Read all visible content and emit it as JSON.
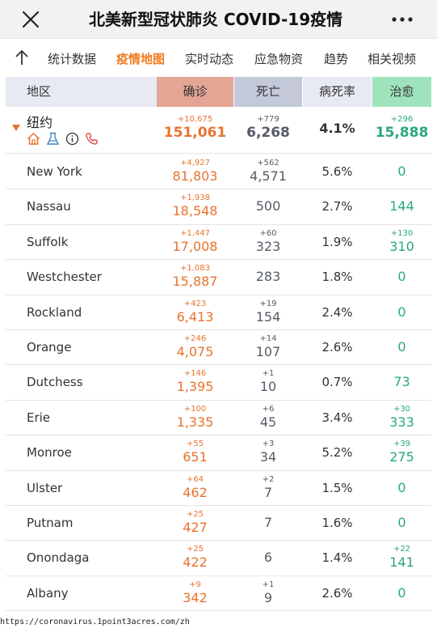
{
  "window": {
    "title": "北美新型冠状肺炎 COVID-19疫情"
  },
  "tabs": [
    {
      "label": "统计数据",
      "active": false
    },
    {
      "label": "疫情地图",
      "active": true
    },
    {
      "label": "实时动态",
      "active": false
    },
    {
      "label": "应急物资",
      "active": false
    },
    {
      "label": "趋势",
      "active": false
    },
    {
      "label": "相关视频",
      "active": false
    }
  ],
  "table": {
    "headers": {
      "region": "地区",
      "confirmed": "确诊",
      "deaths": "死亡",
      "fatality_rate": "病死率",
      "recovered": "治愈"
    },
    "header_colors": {
      "region": "#e7eaf2",
      "confirmed": "#e3a594",
      "deaths": "#c4c9da",
      "fatality_rate": "#e7eaf2",
      "recovered": "#9fe3bc"
    },
    "state": {
      "name": "纽约",
      "confirmed_delta": "+10,675",
      "confirmed": "151,061",
      "deaths_delta": "+779",
      "deaths": "6,268",
      "rate": "4.1%",
      "recovered_delta": "+296",
      "recovered": "15,888",
      "icons": [
        "home-icon",
        "flask-icon",
        "info-icon",
        "phone-icon"
      ]
    },
    "rows": [
      {
        "name": "New York",
        "confirmed_delta": "+4,927",
        "confirmed": "81,803",
        "deaths_delta": "+562",
        "deaths": "4,571",
        "rate": "5.6%",
        "recovered_delta": "",
        "recovered": "0"
      },
      {
        "name": "Nassau",
        "confirmed_delta": "+1,938",
        "confirmed": "18,548",
        "deaths_delta": "",
        "deaths": "500",
        "rate": "2.7%",
        "recovered_delta": "",
        "recovered": "144"
      },
      {
        "name": "Suffolk",
        "confirmed_delta": "+1,447",
        "confirmed": "17,008",
        "deaths_delta": "+60",
        "deaths": "323",
        "rate": "1.9%",
        "recovered_delta": "+130",
        "recovered": "310"
      },
      {
        "name": "Westchester",
        "confirmed_delta": "+1,083",
        "confirmed": "15,887",
        "deaths_delta": "",
        "deaths": "283",
        "rate": "1.8%",
        "recovered_delta": "",
        "recovered": "0"
      },
      {
        "name": "Rockland",
        "confirmed_delta": "+423",
        "confirmed": "6,413",
        "deaths_delta": "+19",
        "deaths": "154",
        "rate": "2.4%",
        "recovered_delta": "",
        "recovered": "0"
      },
      {
        "name": "Orange",
        "confirmed_delta": "+246",
        "confirmed": "4,075",
        "deaths_delta": "+14",
        "deaths": "107",
        "rate": "2.6%",
        "recovered_delta": "",
        "recovered": "0"
      },
      {
        "name": "Dutchess",
        "confirmed_delta": "+146",
        "confirmed": "1,395",
        "deaths_delta": "+1",
        "deaths": "10",
        "rate": "0.7%",
        "recovered_delta": "",
        "recovered": "73"
      },
      {
        "name": "Erie",
        "confirmed_delta": "+100",
        "confirmed": "1,335",
        "deaths_delta": "+6",
        "deaths": "45",
        "rate": "3.4%",
        "recovered_delta": "+30",
        "recovered": "333"
      },
      {
        "name": "Monroe",
        "confirmed_delta": "+55",
        "confirmed": "651",
        "deaths_delta": "+3",
        "deaths": "34",
        "rate": "5.2%",
        "recovered_delta": "+39",
        "recovered": "275"
      },
      {
        "name": "Ulster",
        "confirmed_delta": "+64",
        "confirmed": "462",
        "deaths_delta": "+2",
        "deaths": "7",
        "rate": "1.5%",
        "recovered_delta": "",
        "recovered": "0"
      },
      {
        "name": "Putnam",
        "confirmed_delta": "+25",
        "confirmed": "427",
        "deaths_delta": "",
        "deaths": "7",
        "rate": "1.6%",
        "recovered_delta": "",
        "recovered": "0"
      },
      {
        "name": "Onondaga",
        "confirmed_delta": "+25",
        "confirmed": "422",
        "deaths_delta": "",
        "deaths": "6",
        "rate": "1.4%",
        "recovered_delta": "+22",
        "recovered": "141"
      },
      {
        "name": "Albany",
        "confirmed_delta": "+9",
        "confirmed": "342",
        "deaths_delta": "+1",
        "deaths": "9",
        "rate": "2.6%",
        "recovered_delta": "",
        "recovered": "0"
      }
    ]
  },
  "footer": {
    "url": "https://coronavirus.1point3acres.com/zh"
  },
  "colors": {
    "accent": "#f07a1e",
    "confirmed_text": "#e8732d",
    "deaths_text": "#555b66",
    "recovered_text": "#2aa87b",
    "phone_icon": "#e03b3b"
  }
}
